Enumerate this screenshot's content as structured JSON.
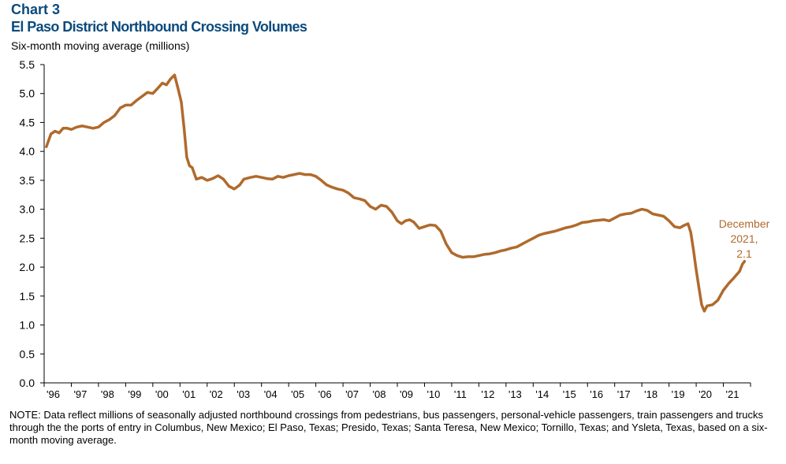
{
  "chart_data": {
    "type": "line",
    "chart_label": "Chart 3",
    "title": "El Paso District Northbound Crossing Volumes",
    "subtitle": "Six-month moving average (millions)",
    "ylim": [
      0,
      5.5
    ],
    "y_ticks": [
      "0.0",
      "0.5",
      "1.0",
      "1.5",
      "2.0",
      "2.5",
      "3.0",
      "3.5",
      "4.0",
      "4.5",
      "5.0",
      "5.5"
    ],
    "x_ticks": [
      "'96",
      "'97",
      "'98",
      "'99",
      "'00",
      "'01",
      "'02",
      "'03",
      "'04",
      "'05",
      "'06",
      "'07",
      "'08",
      "'09",
      "'10",
      "'11",
      "'12",
      "'13",
      "'14",
      "'15",
      "'16",
      "'17",
      "'18",
      "'19",
      "'20",
      "'21"
    ],
    "xlim": [
      1996,
      2022
    ],
    "line_color": "#b06a2c",
    "annotation": {
      "lines": [
        "December",
        "2021,",
        "2.1"
      ],
      "color": "#b06a2c"
    },
    "series": [
      {
        "name": "El Paso District northbound crossings (six-month moving average)",
        "points": [
          [
            1996.08,
            4.08
          ],
          [
            1996.25,
            4.3
          ],
          [
            1996.4,
            4.35
          ],
          [
            1996.55,
            4.32
          ],
          [
            1996.7,
            4.4
          ],
          [
            1996.85,
            4.4
          ],
          [
            1997.0,
            4.38
          ],
          [
            1997.2,
            4.42
          ],
          [
            1997.4,
            4.44
          ],
          [
            1997.6,
            4.42
          ],
          [
            1997.8,
            4.4
          ],
          [
            1998.0,
            4.42
          ],
          [
            1998.2,
            4.5
          ],
          [
            1998.4,
            4.55
          ],
          [
            1998.6,
            4.62
          ],
          [
            1998.8,
            4.75
          ],
          [
            1999.0,
            4.8
          ],
          [
            1999.2,
            4.8
          ],
          [
            1999.4,
            4.88
          ],
          [
            1999.6,
            4.95
          ],
          [
            1999.8,
            5.02
          ],
          [
            2000.0,
            5.0
          ],
          [
            2000.2,
            5.1
          ],
          [
            2000.35,
            5.18
          ],
          [
            2000.5,
            5.15
          ],
          [
            2000.65,
            5.25
          ],
          [
            2000.8,
            5.32
          ],
          [
            2000.92,
            5.1
          ],
          [
            2001.05,
            4.85
          ],
          [
            2001.15,
            4.4
          ],
          [
            2001.25,
            3.9
          ],
          [
            2001.35,
            3.75
          ],
          [
            2001.45,
            3.72
          ],
          [
            2001.6,
            3.52
          ],
          [
            2001.8,
            3.55
          ],
          [
            2002.0,
            3.5
          ],
          [
            2002.2,
            3.53
          ],
          [
            2002.4,
            3.58
          ],
          [
            2002.6,
            3.52
          ],
          [
            2002.8,
            3.4
          ],
          [
            2003.0,
            3.35
          ],
          [
            2003.2,
            3.42
          ],
          [
            2003.35,
            3.52
          ],
          [
            2003.6,
            3.55
          ],
          [
            2003.8,
            3.57
          ],
          [
            2004.0,
            3.55
          ],
          [
            2004.2,
            3.53
          ],
          [
            2004.4,
            3.52
          ],
          [
            2004.6,
            3.57
          ],
          [
            2004.8,
            3.55
          ],
          [
            2005.0,
            3.58
          ],
          [
            2005.2,
            3.6
          ],
          [
            2005.4,
            3.62
          ],
          [
            2005.6,
            3.6
          ],
          [
            2005.8,
            3.6
          ],
          [
            2006.0,
            3.57
          ],
          [
            2006.2,
            3.5
          ],
          [
            2006.4,
            3.42
          ],
          [
            2006.6,
            3.38
          ],
          [
            2006.8,
            3.35
          ],
          [
            2007.0,
            3.33
          ],
          [
            2007.2,
            3.28
          ],
          [
            2007.4,
            3.2
          ],
          [
            2007.6,
            3.18
          ],
          [
            2007.8,
            3.15
          ],
          [
            2008.0,
            3.05
          ],
          [
            2008.2,
            3.0
          ],
          [
            2008.4,
            3.07
          ],
          [
            2008.6,
            3.05
          ],
          [
            2008.8,
            2.95
          ],
          [
            2009.0,
            2.8
          ],
          [
            2009.15,
            2.75
          ],
          [
            2009.3,
            2.8
          ],
          [
            2009.45,
            2.82
          ],
          [
            2009.6,
            2.78
          ],
          [
            2009.8,
            2.67
          ],
          [
            2010.0,
            2.7
          ],
          [
            2010.2,
            2.73
          ],
          [
            2010.4,
            2.72
          ],
          [
            2010.6,
            2.62
          ],
          [
            2010.8,
            2.4
          ],
          [
            2011.0,
            2.25
          ],
          [
            2011.2,
            2.2
          ],
          [
            2011.4,
            2.17
          ],
          [
            2011.6,
            2.18
          ],
          [
            2011.8,
            2.18
          ],
          [
            2012.0,
            2.2
          ],
          [
            2012.2,
            2.22
          ],
          [
            2012.4,
            2.23
          ],
          [
            2012.6,
            2.25
          ],
          [
            2012.8,
            2.28
          ],
          [
            2013.0,
            2.3
          ],
          [
            2013.2,
            2.33
          ],
          [
            2013.4,
            2.35
          ],
          [
            2013.6,
            2.4
          ],
          [
            2013.8,
            2.45
          ],
          [
            2014.0,
            2.5
          ],
          [
            2014.2,
            2.55
          ],
          [
            2014.4,
            2.58
          ],
          [
            2014.6,
            2.6
          ],
          [
            2014.8,
            2.62
          ],
          [
            2015.0,
            2.65
          ],
          [
            2015.2,
            2.68
          ],
          [
            2015.4,
            2.7
          ],
          [
            2015.6,
            2.73
          ],
          [
            2015.8,
            2.77
          ],
          [
            2016.0,
            2.78
          ],
          [
            2016.2,
            2.8
          ],
          [
            2016.4,
            2.81
          ],
          [
            2016.6,
            2.82
          ],
          [
            2016.8,
            2.8
          ],
          [
            2017.0,
            2.85
          ],
          [
            2017.2,
            2.9
          ],
          [
            2017.4,
            2.92
          ],
          [
            2017.6,
            2.93
          ],
          [
            2017.8,
            2.97
          ],
          [
            2018.0,
            3.0
          ],
          [
            2018.2,
            2.98
          ],
          [
            2018.4,
            2.92
          ],
          [
            2018.6,
            2.9
          ],
          [
            2018.8,
            2.88
          ],
          [
            2019.0,
            2.8
          ],
          [
            2019.2,
            2.7
          ],
          [
            2019.4,
            2.68
          ],
          [
            2019.55,
            2.72
          ],
          [
            2019.7,
            2.75
          ],
          [
            2019.8,
            2.6
          ],
          [
            2019.9,
            2.3
          ],
          [
            2020.0,
            1.95
          ],
          [
            2020.1,
            1.65
          ],
          [
            2020.2,
            1.35
          ],
          [
            2020.3,
            1.24
          ],
          [
            2020.4,
            1.33
          ],
          [
            2020.6,
            1.35
          ],
          [
            2020.8,
            1.43
          ],
          [
            2021.0,
            1.6
          ],
          [
            2021.2,
            1.72
          ],
          [
            2021.4,
            1.82
          ],
          [
            2021.6,
            1.93
          ],
          [
            2021.7,
            2.05
          ],
          [
            2021.78,
            2.1
          ]
        ]
      }
    ]
  },
  "note": "NOTE: Data reflect millions of seasonally adjusted northbound crossings from pedestrians, bus passengers, personal-vehicle passengers, train passengers and trucks through the the ports of entry in Columbus, New Mexico; El Paso, Texas; Presido, Texas; Santa Teresa, New Mexico; Tornillo, Texas; and Ysleta, Texas, based on a six-month moving average."
}
